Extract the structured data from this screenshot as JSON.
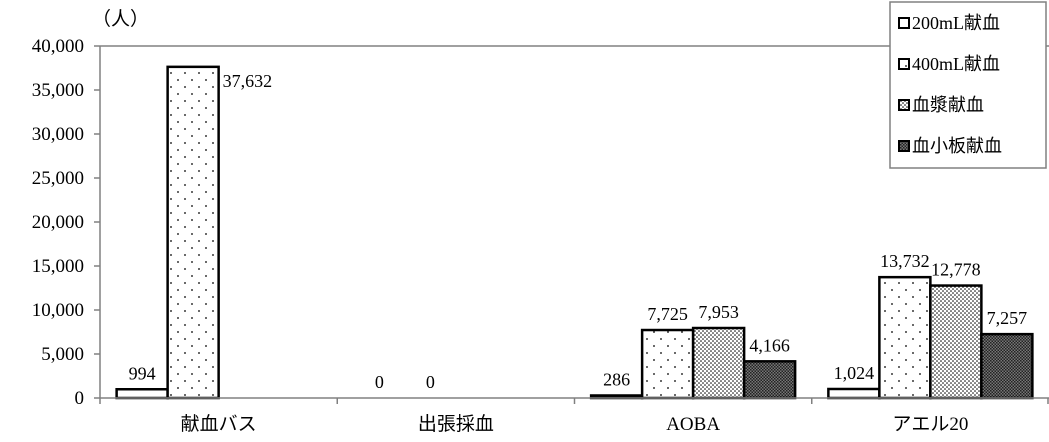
{
  "chart_data": {
    "type": "bar",
    "unit_label": "（人）",
    "categories": [
      "献血バス",
      "出張採血",
      "AOBA",
      "アエル20"
    ],
    "ylim": [
      0,
      40000
    ],
    "yticks": [
      0,
      5000,
      10000,
      15000,
      20000,
      25000,
      30000,
      35000,
      40000
    ],
    "ytick_labels": [
      "0",
      "5,000",
      "10,000",
      "15,000",
      "20,000",
      "25,000",
      "30,000",
      "35,000",
      "40,000"
    ],
    "grid": false,
    "legend_position": "top-right",
    "series": [
      {
        "name": "200mL献血",
        "pattern": "white",
        "values": [
          994,
          0,
          286,
          1024
        ],
        "labels": [
          "994",
          "0",
          "286",
          "1,024"
        ]
      },
      {
        "name": "400mL献血",
        "pattern": "sparse-dots",
        "values": [
          37632,
          0,
          7725,
          13732
        ],
        "labels": [
          "37,632",
          "0",
          "7,725",
          "13,732"
        ]
      },
      {
        "name": "血漿献血",
        "pattern": "dense-dots",
        "values": [
          null,
          null,
          7953,
          12778
        ],
        "labels": [
          null,
          null,
          "7,953",
          "12,778"
        ]
      },
      {
        "name": "血小板献血",
        "pattern": "checker",
        "values": [
          null,
          null,
          4166,
          7257
        ],
        "labels": [
          null,
          null,
          "4,166",
          "7,257"
        ]
      }
    ]
  }
}
